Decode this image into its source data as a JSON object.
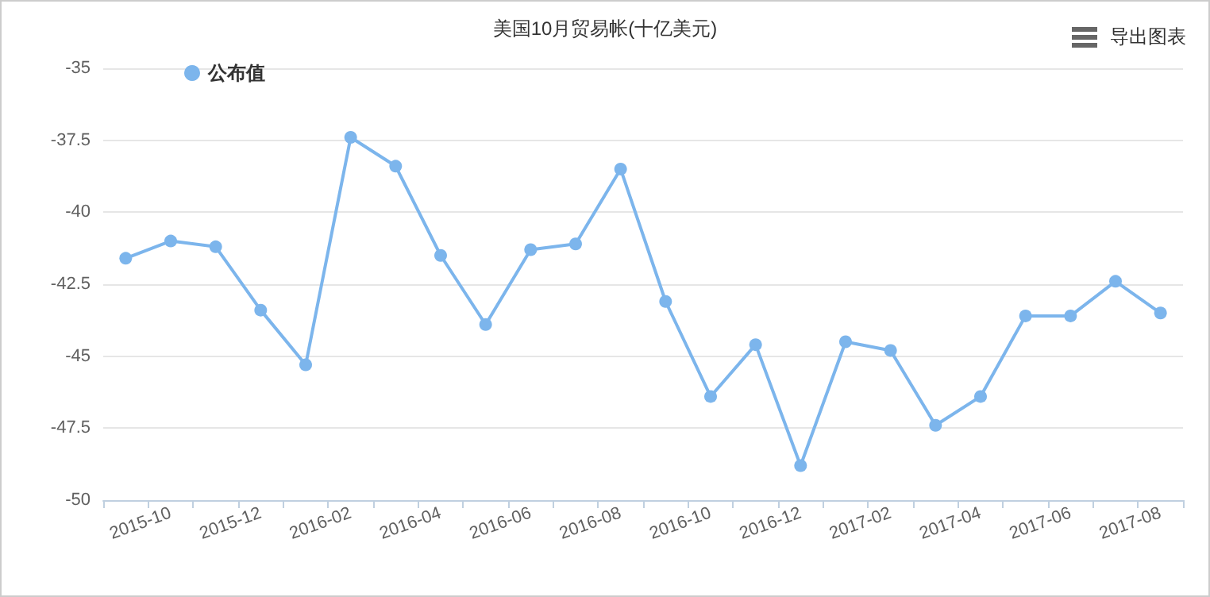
{
  "chart_data": {
    "type": "line",
    "title": "美国10月贸易帐(十亿美元)",
    "categories": [
      null,
      "2015-10",
      null,
      "2015-12",
      null,
      "2016-02",
      null,
      "2016-04",
      null,
      "2016-06",
      null,
      "2016-08",
      null,
      "2016-10",
      null,
      "2016-12",
      null,
      "2017-02",
      null,
      "2017-04",
      null,
      "2017-06",
      null,
      "2017-08"
    ],
    "series": [
      {
        "name": "公布值",
        "color": "#7cb5ec",
        "values": [
          -41.6,
          -41.0,
          -41.2,
          -43.4,
          -45.3,
          -37.4,
          -38.4,
          -41.5,
          -43.9,
          -41.3,
          -41.1,
          -38.5,
          -43.1,
          -46.4,
          -44.6,
          -48.8,
          -44.5,
          -44.8,
          -47.4,
          -46.4,
          -43.6,
          -43.6,
          -42.4,
          -43.5
        ]
      }
    ],
    "ylim": [
      -50,
      -35
    ],
    "yticks": [
      -50,
      -47.5,
      -45,
      -42.5,
      -40,
      -37.5,
      -35
    ],
    "grid": "y",
    "legend": "top left",
    "marker": "circle",
    "line_style": "solid",
    "annotations": [
      "导出图表"
    ]
  }
}
